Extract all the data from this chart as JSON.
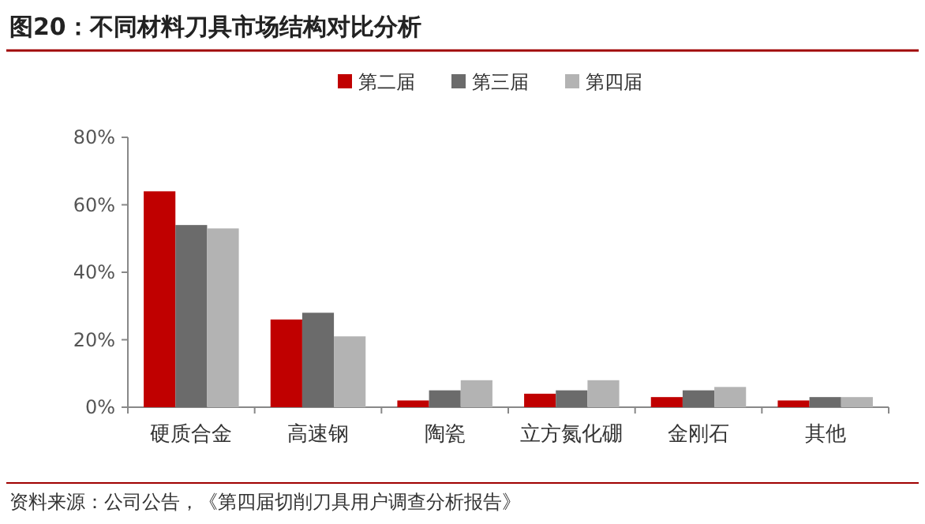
{
  "chart_data": {
    "type": "bar",
    "title": "图20：不同材料刀具市场结构对比分析",
    "categories": [
      "硬质合金",
      "高速钢",
      "陶瓷",
      "立方氮化硼",
      "金刚石",
      "其他"
    ],
    "series": [
      {
        "name": "第二届",
        "color": "#c00000",
        "values": [
          64,
          26,
          2,
          4,
          3,
          2
        ]
      },
      {
        "name": "第三届",
        "color": "#6b6b6b",
        "values": [
          54,
          28,
          5,
          5,
          5,
          3
        ]
      },
      {
        "name": "第四届",
        "color": "#b3b3b3",
        "values": [
          53,
          21,
          8,
          8,
          6,
          3
        ]
      }
    ],
    "ylim": [
      0,
      80
    ],
    "yticks": [
      {
        "value": 0,
        "label": "0%"
      },
      {
        "value": 20,
        "label": "20%"
      },
      {
        "value": 40,
        "label": "40%"
      },
      {
        "value": 60,
        "label": "60%"
      },
      {
        "value": 80,
        "label": "80%"
      }
    ],
    "grid": false,
    "legend": "top",
    "annotations": [
      "资料来源：公司公告，《第四届切削刀具用户调查分析报告》"
    ]
  }
}
